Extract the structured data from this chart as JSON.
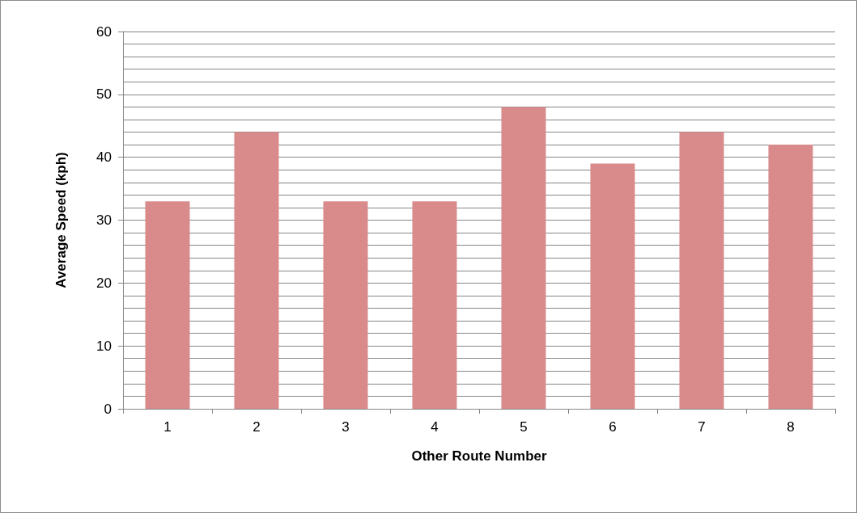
{
  "chart_data": {
    "type": "bar",
    "xlabel": "Other Route Number",
    "ylabel": "Average Speed (kph)",
    "categories": [
      "1",
      "2",
      "3",
      "4",
      "5",
      "6",
      "7",
      "8"
    ],
    "values": [
      33,
      44,
      33,
      33,
      48,
      39,
      44,
      42
    ],
    "color": "#d98a8a",
    "ylim": [
      0,
      60
    ],
    "yticks": [
      0,
      {
        "value": 2,
        "label": null
      },
      {
        "value": 4,
        "label": null
      },
      {
        "value": 6,
        "label": null
      },
      {
        "value": 8,
        "label": null
      },
      10,
      {
        "value": 12,
        "label": null
      },
      {
        "value": 14,
        "label": null
      },
      {
        "value": 16,
        "label": null
      },
      {
        "value": 18,
        "label": null
      },
      20,
      {
        "value": 22,
        "label": null
      },
      {
        "value": 24,
        "label": null
      },
      {
        "value": 26,
        "label": null
      },
      {
        "value": 28,
        "label": null
      },
      30,
      {
        "value": 32,
        "label": null
      },
      {
        "value": 34,
        "label": null
      },
      {
        "value": 36,
        "label": null
      },
      {
        "value": 38,
        "label": null
      },
      40,
      {
        "value": 42,
        "label": null
      },
      {
        "value": 44,
        "label": null
      },
      {
        "value": 46,
        "label": null
      },
      {
        "value": 48,
        "label": null
      },
      50,
      {
        "value": 52,
        "label": null
      },
      {
        "value": 54,
        "label": null
      },
      {
        "value": 56,
        "label": null
      },
      {
        "value": 58,
        "label": null
      },
      60
    ],
    "grid": "y"
  }
}
